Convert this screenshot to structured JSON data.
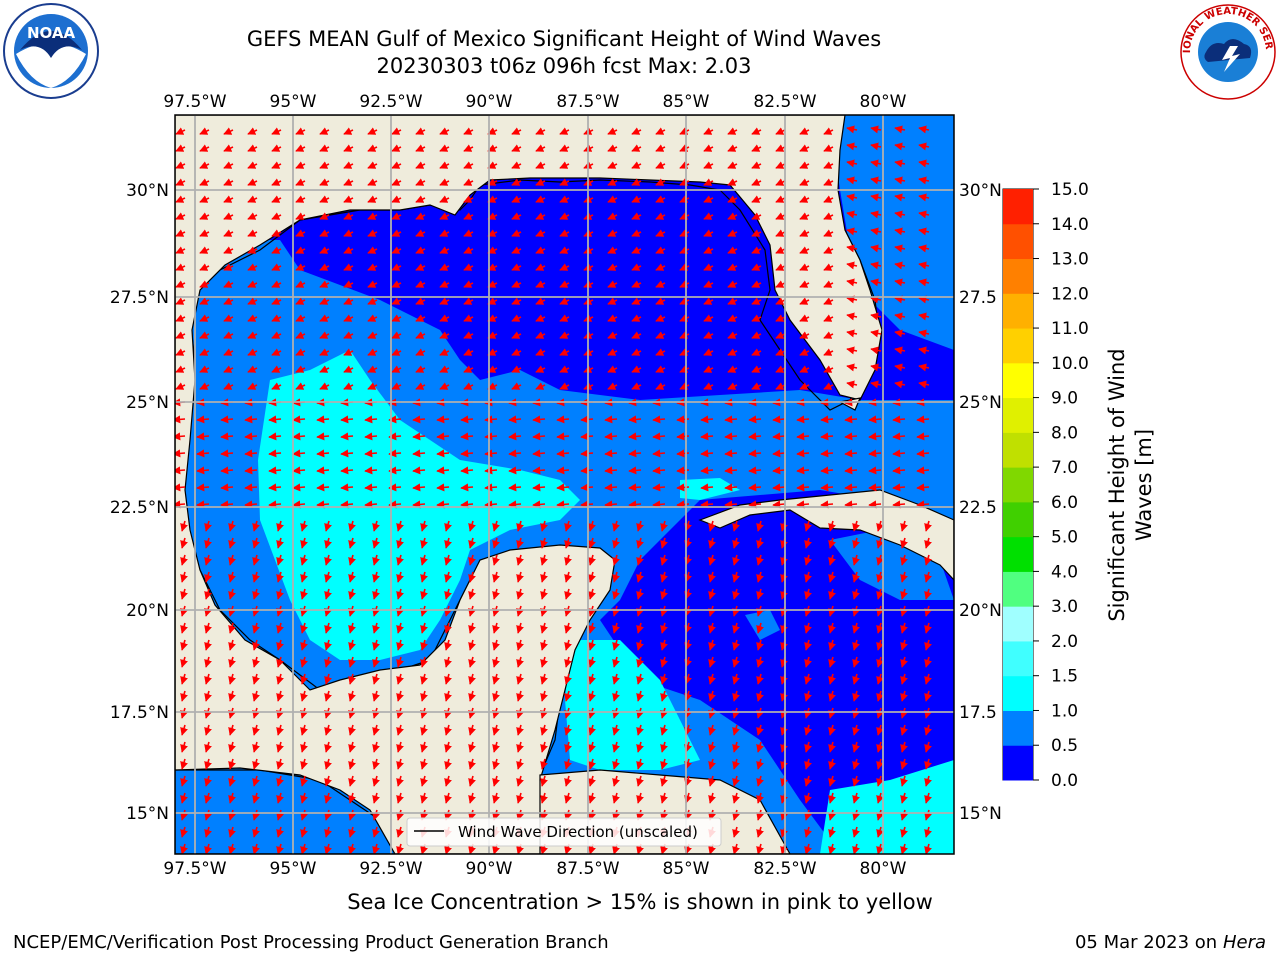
{
  "header": {
    "title_line1": "GEFS MEAN Gulf of Mexico Significant Height of Wind Waves",
    "title_line2": "20230303 t06z 096h fcst   Max: 2.03"
  },
  "caption": "Sea Ice Concentration > 15% is shown in pink to yellow",
  "footer": {
    "left": "NCEP/EMC/Verification Post Processing Product Generation Branch",
    "date": "05 Mar 2023 on",
    "machine": "Hera"
  },
  "logos": {
    "left": "NOAA",
    "right": "NATIONAL WEATHER SERVICE"
  },
  "map": {
    "lon_ticks": [
      "97.5°W",
      "95°W",
      "92.5°W",
      "90°W",
      "87.5°W",
      "85°W",
      "82.5°W",
      "80°W"
    ],
    "lat_ticks_left": [
      "30°N",
      "27.5°N",
      "25°N",
      "22.5°N",
      "20°N",
      "17.5°N",
      "15°N"
    ],
    "lat_ticks_right": [
      "30°N",
      "27.5",
      "25°N",
      "22.5",
      "20°N",
      "17.5",
      "15°N"
    ],
    "legend_label": "Wind Wave Direction (unscaled)",
    "land_color": "#efecdc",
    "arrow_color": "#ff0000"
  },
  "colorbar": {
    "label_line1": "Significant Height of Wind",
    "label_line2": "Waves [m]",
    "ticks": [
      "0.0",
      "0.5",
      "1.0",
      "1.5",
      "2.0",
      "3.0",
      "4.0",
      "5.0",
      "6.0",
      "7.0",
      "8.0",
      "9.0",
      "10.0",
      "11.0",
      "12.0",
      "13.0",
      "14.0",
      "15.0"
    ],
    "colors": [
      "#0000ff",
      "#0080ff",
      "#00ffff",
      "#40ffff",
      "#a0ffff",
      "#50ff80",
      "#00e000",
      "#40d000",
      "#80d800",
      "#c0e000",
      "#e0f000",
      "#ffff00",
      "#ffd000",
      "#ffb000",
      "#ff8000",
      "#ff5000",
      "#ff2000"
    ]
  },
  "chart_data": {
    "type": "heatmap",
    "title": "GEFS MEAN Gulf of Mexico Significant Height of Wind Waves",
    "subtitle": "20230303 t06z 096h fcst   Max: 2.03",
    "max_value": 2.03,
    "units": "m",
    "x_range_lon": [
      -98,
      -78
    ],
    "y_range_lat": [
      14,
      31.5
    ],
    "colorbar_range": [
      0,
      15
    ]
  }
}
